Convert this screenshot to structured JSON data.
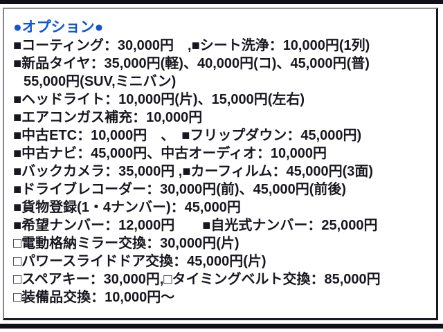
{
  "colors": {
    "header_blue": "#0e56d6",
    "body_text": "#17171f",
    "divider_black": "#10101a",
    "frame_border_light": "#90909a",
    "frame_border_dark": "#191922",
    "background": "#ffffff"
  },
  "options": {
    "header": "●オプション●",
    "lines": [
      {
        "text": "■コーティング：30,000円　,■シート洗浄：10,000円(1列)"
      },
      {
        "text": "■新品タイヤ：35,000円(軽)、40,000円(コ)、45,000円(普)"
      },
      {
        "text": "55,000円(SUV,ミニバン)"
      },
      {
        "text": "■ヘッドライト：10,000円(片)、15,000円(左右)"
      },
      {
        "text": "■エアコンガス補充：10,000円"
      },
      {
        "text": "■中古ETC：10,000円　、　■フリップダウン：45,000円)"
      },
      {
        "text": "■中古ナビ：45,000円、中古オーディオ：10,000円"
      },
      {
        "text": "■バックカメラ：35,000円 ,■カーフィルム：45,000円(3面)"
      },
      {
        "text": "■ドライブレコーダー：30,000円(前)、45,000円(前後)"
      },
      {
        "text": "■貨物登録(1・4ナンバー)：45,000円"
      },
      {
        "text": "■希望ナンバー：12,000円　　■自光式ナンバー：25,000円"
      },
      {
        "text": "□電動格納ミラー交換：30,000円(片)"
      },
      {
        "text": "□パワースライドドア交換：45,000円(片)"
      },
      {
        "text": "□スペアキー：30,000円,□タイミングベルト交換：85,000円"
      },
      {
        "text": "□装備品交換：10,000円～"
      }
    ]
  }
}
